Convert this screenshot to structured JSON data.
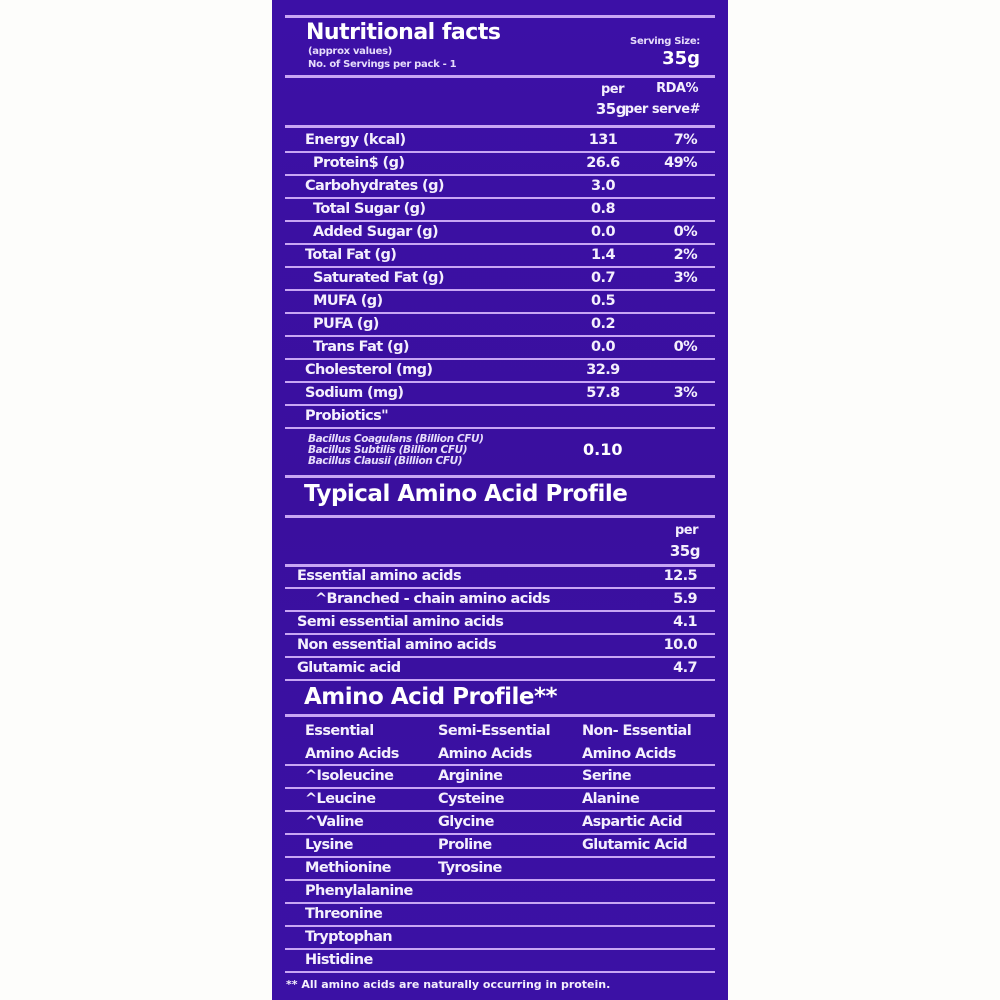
{
  "nutrition": {
    "title": "Nutritional facts",
    "subtitle": "(approx values)",
    "servings": "No. of Servings per pack - 1",
    "serving_size_label": "Serving Size:",
    "serving_size": "35g",
    "col_per": "per",
    "col_per2": "35g",
    "col_rda": "RDA%",
    "col_rda2": "per serve#",
    "rows": [
      {
        "label": "Energy (kcal)",
        "value": "131",
        "rda": "7%"
      },
      {
        "label": "Protein$ (g)",
        "value": "26.6",
        "rda": "49%"
      },
      {
        "label": "Carbohydrates (g)",
        "value": "3.0",
        "rda": ""
      },
      {
        "label": "Total Sugar (g)",
        "value": "0.8",
        "rda": ""
      },
      {
        "label": "Added Sugar (g)",
        "value": "0.0",
        "rda": "0%"
      },
      {
        "label": "Total Fat (g)",
        "value": "1.4",
        "rda": "2%"
      },
      {
        "label": "Saturated Fat (g)",
        "value": "0.7",
        "rda": "3%"
      },
      {
        "label": "MUFA (g)",
        "value": "0.5",
        "rda": ""
      },
      {
        "label": "PUFA (g)",
        "value": "0.2",
        "rda": ""
      },
      {
        "label": "Trans Fat (g)",
        "value": "0.0",
        "rda": "0%"
      },
      {
        "label": "Cholesterol (mg)",
        "value": "32.9",
        "rda": ""
      },
      {
        "label": "Sodium (mg)",
        "value": "57.8",
        "rda": "3%"
      },
      {
        "label": "Probiotics\"",
        "value": "",
        "rda": ""
      }
    ],
    "bacillus": [
      "Bacillus Coagulans (Billion CFU)",
      "Bacillus Subtilis (Billion CFU)",
      "Bacillus Clausii (Billion CFU)"
    ],
    "bacillus_value": "0.10"
  },
  "typical": {
    "title": "Typical Amino Acid Profile",
    "col_per": "per",
    "col_per2": "35g",
    "rows": [
      {
        "label": "Essential amino acids",
        "value": "12.5"
      },
      {
        "label": "^Branched - chain amino acids",
        "value": "5.9"
      },
      {
        "label": "Semi essential amino acids",
        "value": "4.1"
      },
      {
        "label": "Non essential amino acids",
        "value": "10.0"
      },
      {
        "label": "Glutamic acid",
        "value": "4.7"
      }
    ]
  },
  "profile": {
    "title": "Amino Acid Profile**",
    "headers": [
      [
        "Essential",
        "Amino Acids"
      ],
      [
        "Semi-Essential",
        "Amino Acids"
      ],
      [
        "Non- Essential",
        "Amino Acids"
      ]
    ],
    "rows": [
      [
        "^Isoleucine",
        "Arginine",
        "Serine"
      ],
      [
        "^Leucine",
        "Cysteine",
        "Alanine"
      ],
      [
        "^Valine",
        "Glycine",
        "Aspartic Acid"
      ],
      [
        "Lysine",
        "Proline",
        "Glutamic Acid"
      ],
      [
        "Methionine",
        "Tyrosine",
        ""
      ],
      [
        "Phenylalanine",
        "",
        ""
      ],
      [
        "Threonine",
        "",
        ""
      ],
      [
        "Tryptophan",
        "",
        ""
      ],
      [
        "Histidine",
        "",
        ""
      ]
    ],
    "footnote": "** All amino acids are naturally occurring in protein."
  },
  "colors": {
    "background": "#3b10a3",
    "rule": "#c8a6f4"
  }
}
